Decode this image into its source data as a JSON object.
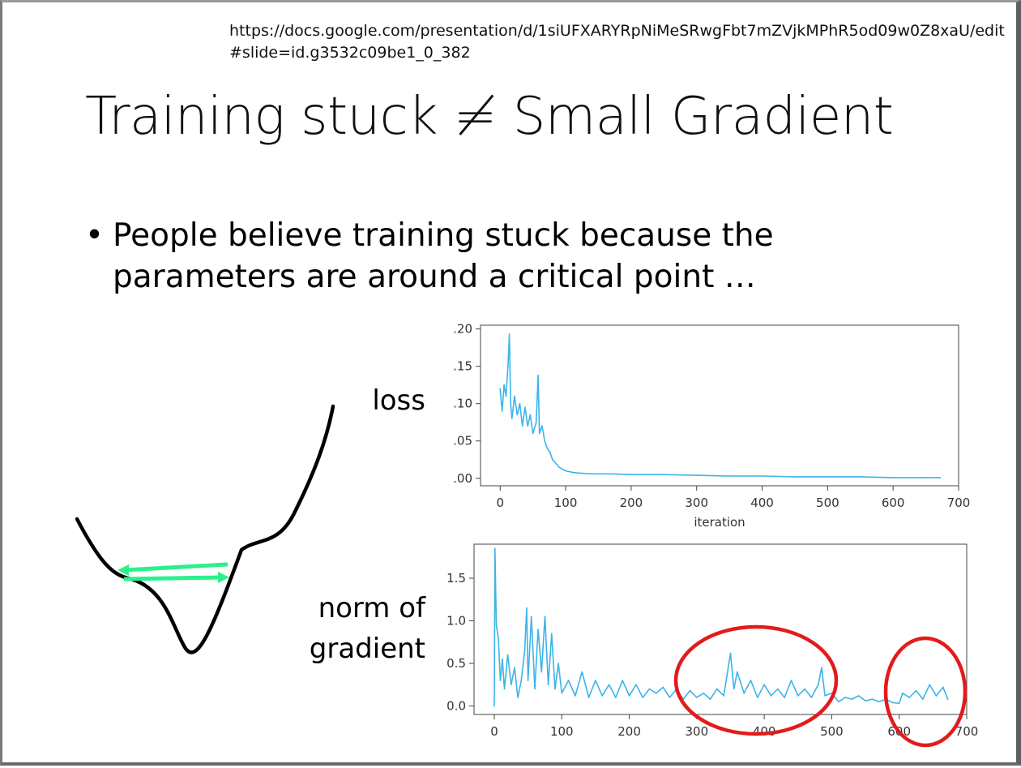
{
  "header": {
    "url": "https://docs.google.com/presentation/d/1siUFXARYRpNiMeSRwgFbt7mZVjkMPhR5od09w0Z8xaU/edit#slide=id.g3532c09be1_0_382"
  },
  "slide": {
    "title": "Training stuck ≠ Small Gradient",
    "bullet_symbol": "•",
    "bullet_text": "People believe training stuck because the parameters are around a critical point …",
    "label_loss": "loss",
    "label_norm": "norm of\ngradient"
  },
  "colors": {
    "series": "#3cb4e8",
    "valley_curve": "#000000",
    "arrows": "#2cf08c",
    "circles": "#e31b1b",
    "axis": "#333333"
  },
  "icons": [
    "valley-curve",
    "double-arrow",
    "red-circle"
  ],
  "chart_data": [
    {
      "type": "line",
      "title": "",
      "xlabel": "iteration",
      "ylabel": "",
      "xlim": [
        -30,
        700
      ],
      "ylim": [
        -0.01,
        0.205
      ],
      "xticks": [
        0,
        100,
        200,
        300,
        400,
        500,
        600,
        700
      ],
      "yticks": [
        0.0,
        0.05,
        0.1,
        0.15,
        0.2
      ],
      "ytick_labels": [
        ".00",
        ".05",
        ".10",
        ".15",
        ".20"
      ],
      "grid": false,
      "series": [
        {
          "values": [
            [
              0,
              0.12
            ],
            [
              3,
              0.09
            ],
            [
              6,
              0.125
            ],
            [
              9,
              0.11
            ],
            [
              12,
              0.15
            ],
            [
              14,
              0.193
            ],
            [
              16,
              0.1
            ],
            [
              18,
              0.08
            ],
            [
              22,
              0.11
            ],
            [
              26,
              0.085
            ],
            [
              30,
              0.1
            ],
            [
              34,
              0.07
            ],
            [
              38,
              0.095
            ],
            [
              42,
              0.07
            ],
            [
              46,
              0.085
            ],
            [
              50,
              0.06
            ],
            [
              55,
              0.075
            ],
            [
              58,
              0.138
            ],
            [
              60,
              0.06
            ],
            [
              64,
              0.07
            ],
            [
              68,
              0.05
            ],
            [
              72,
              0.04
            ],
            [
              76,
              0.035
            ],
            [
              80,
              0.025
            ],
            [
              85,
              0.02
            ],
            [
              90,
              0.015
            ],
            [
              95,
              0.012
            ],
            [
              100,
              0.01
            ],
            [
              110,
              0.008
            ],
            [
              120,
              0.007
            ],
            [
              140,
              0.006
            ],
            [
              170,
              0.006
            ],
            [
              200,
              0.005
            ],
            [
              250,
              0.005
            ],
            [
              300,
              0.004
            ],
            [
              350,
              0.003
            ],
            [
              400,
              0.003
            ],
            [
              450,
              0.002
            ],
            [
              500,
              0.002
            ],
            [
              550,
              0.002
            ],
            [
              600,
              0.001
            ],
            [
              650,
              0.001
            ],
            [
              672,
              0.001
            ]
          ]
        }
      ]
    },
    {
      "type": "line",
      "title": "",
      "xlabel": "",
      "ylabel": "",
      "xlim": [
        -30,
        700
      ],
      "ylim": [
        -0.1,
        1.9
      ],
      "xticks": [
        0,
        100,
        200,
        300,
        400,
        500,
        600,
        700
      ],
      "yticks": [
        0.0,
        0.5,
        1.0,
        1.5
      ],
      "ytick_labels": [
        "0.0",
        "0.5",
        "1.0",
        "1.5"
      ],
      "grid": false,
      "series": [
        {
          "values": [
            [
              0,
              0.0
            ],
            [
              1,
              1.85
            ],
            [
              3,
              0.95
            ],
            [
              6,
              0.8
            ],
            [
              9,
              0.3
            ],
            [
              12,
              0.55
            ],
            [
              15,
              0.2
            ],
            [
              20,
              0.6
            ],
            [
              25,
              0.25
            ],
            [
              30,
              0.45
            ],
            [
              35,
              0.1
            ],
            [
              40,
              0.3
            ],
            [
              45,
              0.65
            ],
            [
              48,
              1.15
            ],
            [
              50,
              0.3
            ],
            [
              55,
              1.05
            ],
            [
              60,
              0.2
            ],
            [
              65,
              0.9
            ],
            [
              70,
              0.4
            ],
            [
              75,
              1.05
            ],
            [
              80,
              0.25
            ],
            [
              85,
              0.85
            ],
            [
              90,
              0.2
            ],
            [
              95,
              0.5
            ],
            [
              100,
              0.15
            ],
            [
              110,
              0.3
            ],
            [
              120,
              0.12
            ],
            [
              130,
              0.4
            ],
            [
              140,
              0.1
            ],
            [
              150,
              0.3
            ],
            [
              160,
              0.12
            ],
            [
              170,
              0.25
            ],
            [
              180,
              0.1
            ],
            [
              190,
              0.3
            ],
            [
              200,
              0.12
            ],
            [
              210,
              0.25
            ],
            [
              220,
              0.1
            ],
            [
              230,
              0.2
            ],
            [
              240,
              0.15
            ],
            [
              250,
              0.22
            ],
            [
              260,
              0.1
            ],
            [
              270,
              0.2
            ],
            [
              280,
              0.08
            ],
            [
              290,
              0.18
            ],
            [
              300,
              0.1
            ],
            [
              310,
              0.15
            ],
            [
              320,
              0.08
            ],
            [
              330,
              0.2
            ],
            [
              340,
              0.12
            ],
            [
              350,
              0.62
            ],
            [
              355,
              0.2
            ],
            [
              360,
              0.4
            ],
            [
              370,
              0.15
            ],
            [
              380,
              0.3
            ],
            [
              390,
              0.1
            ],
            [
              400,
              0.25
            ],
            [
              410,
              0.12
            ],
            [
              420,
              0.2
            ],
            [
              430,
              0.1
            ],
            [
              440,
              0.3
            ],
            [
              450,
              0.12
            ],
            [
              460,
              0.2
            ],
            [
              470,
              0.1
            ],
            [
              480,
              0.25
            ],
            [
              485,
              0.45
            ],
            [
              490,
              0.12
            ],
            [
              500,
              0.15
            ],
            [
              510,
              0.05
            ],
            [
              520,
              0.1
            ],
            [
              530,
              0.08
            ],
            [
              540,
              0.12
            ],
            [
              550,
              0.06
            ],
            [
              560,
              0.08
            ],
            [
              570,
              0.05
            ],
            [
              580,
              0.08
            ],
            [
              590,
              0.04
            ],
            [
              600,
              0.03
            ],
            [
              605,
              0.15
            ],
            [
              615,
              0.1
            ],
            [
              625,
              0.18
            ],
            [
              635,
              0.08
            ],
            [
              645,
              0.25
            ],
            [
              655,
              0.12
            ],
            [
              665,
              0.22
            ],
            [
              672,
              0.08
            ]
          ]
        }
      ]
    }
  ]
}
